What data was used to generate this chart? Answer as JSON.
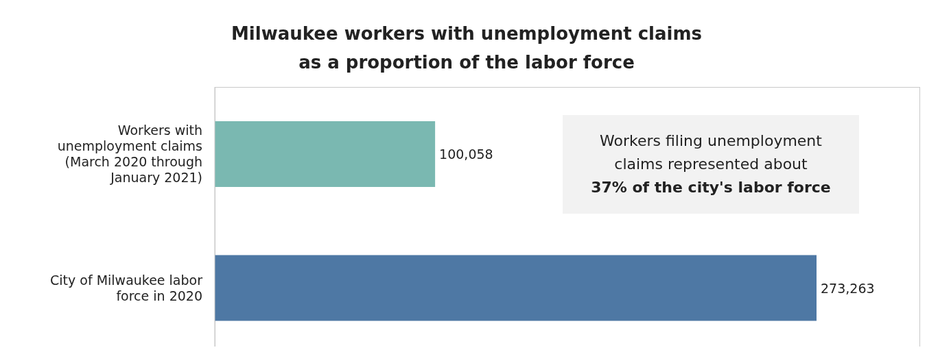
{
  "chart_data": {
    "type": "bar",
    "orientation": "horizontal",
    "title": "Milwaukee workers with unemployment claims\nas a proportion of the labor force",
    "categories": [
      "Workers with unemployment claims (March 2020 through January 2021)",
      "City of Milwaukee labor force in 2020"
    ],
    "values": [
      100058,
      273263
    ],
    "colors": [
      "#7ab8b1",
      "#4e78a4"
    ],
    "annotations": [
      "Workers filing unemployment claims represented about",
      "37% of the city's labor force"
    ],
    "value_labels": [
      "100,058",
      "273,263"
    ]
  }
}
